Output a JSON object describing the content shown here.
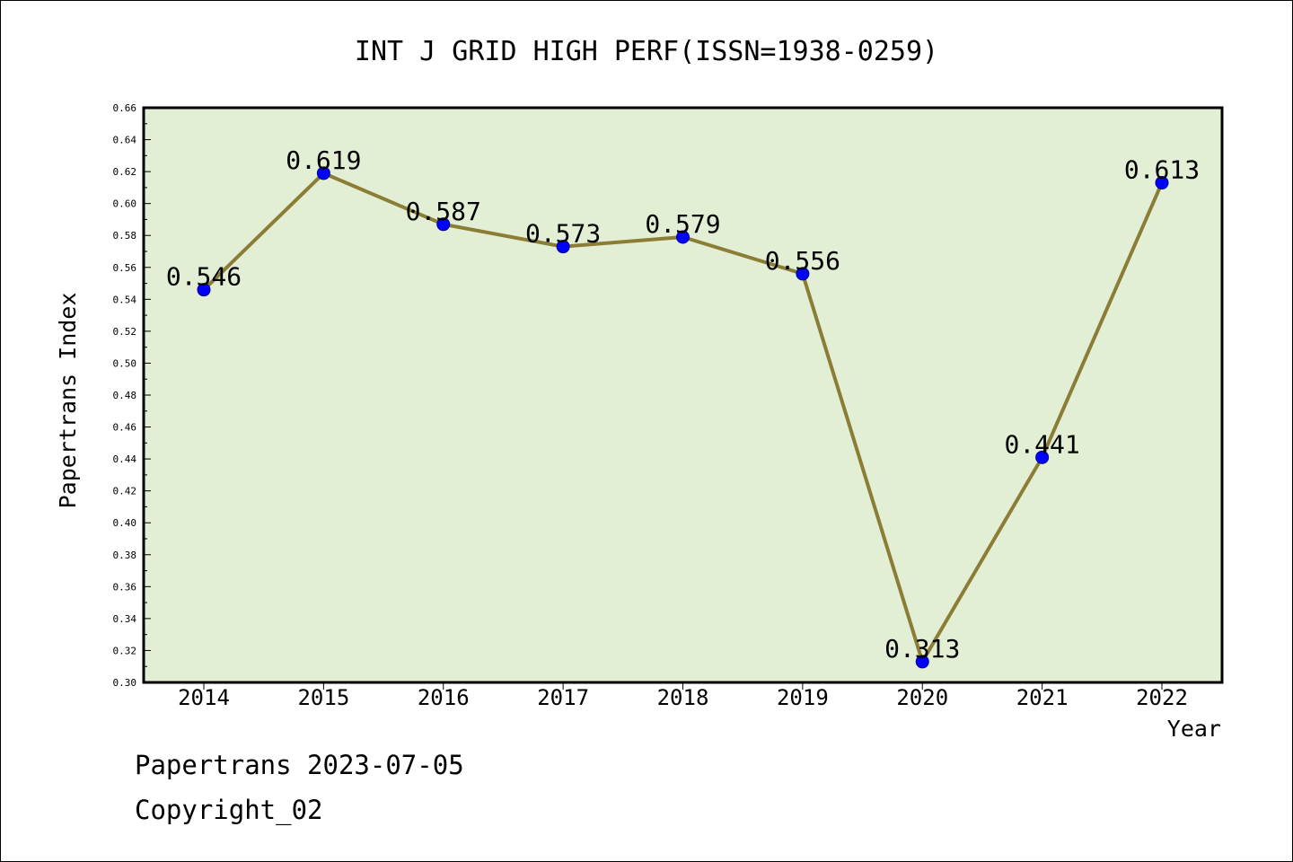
{
  "footer": {
    "line1": "Papertrans 2023-07-05",
    "line2": "Copyright_02"
  },
  "colors": {
    "plot_bg": "#e2efd5",
    "line": "#8b7d35",
    "marker": "#0000ff"
  },
  "chart_data": {
    "type": "line",
    "title": "INT J GRID HIGH PERF(ISSN=1938-0259)",
    "xlabel": "Year",
    "ylabel": "Papertrans Index",
    "categories": [
      "2014",
      "2015",
      "2016",
      "2017",
      "2018",
      "2019",
      "2020",
      "2021",
      "2022"
    ],
    "values": [
      0.546,
      0.619,
      0.587,
      0.573,
      0.579,
      0.556,
      0.313,
      0.441,
      0.613
    ],
    "value_labels": [
      "0.546",
      "0.619",
      "0.587",
      "0.573",
      "0.579",
      "0.556",
      "0.313",
      "0.441",
      "0.613"
    ],
    "ylim": [
      0.3,
      0.66
    ],
    "yticks": [
      "0.30",
      "0.32",
      "0.34",
      "0.36",
      "0.38",
      "0.40",
      "0.42",
      "0.44",
      "0.46",
      "0.48",
      "0.50",
      "0.52",
      "0.54",
      "0.56",
      "0.58",
      "0.60",
      "0.62",
      "0.64",
      "0.66"
    ],
    "grid": false,
    "legend": "none"
  }
}
